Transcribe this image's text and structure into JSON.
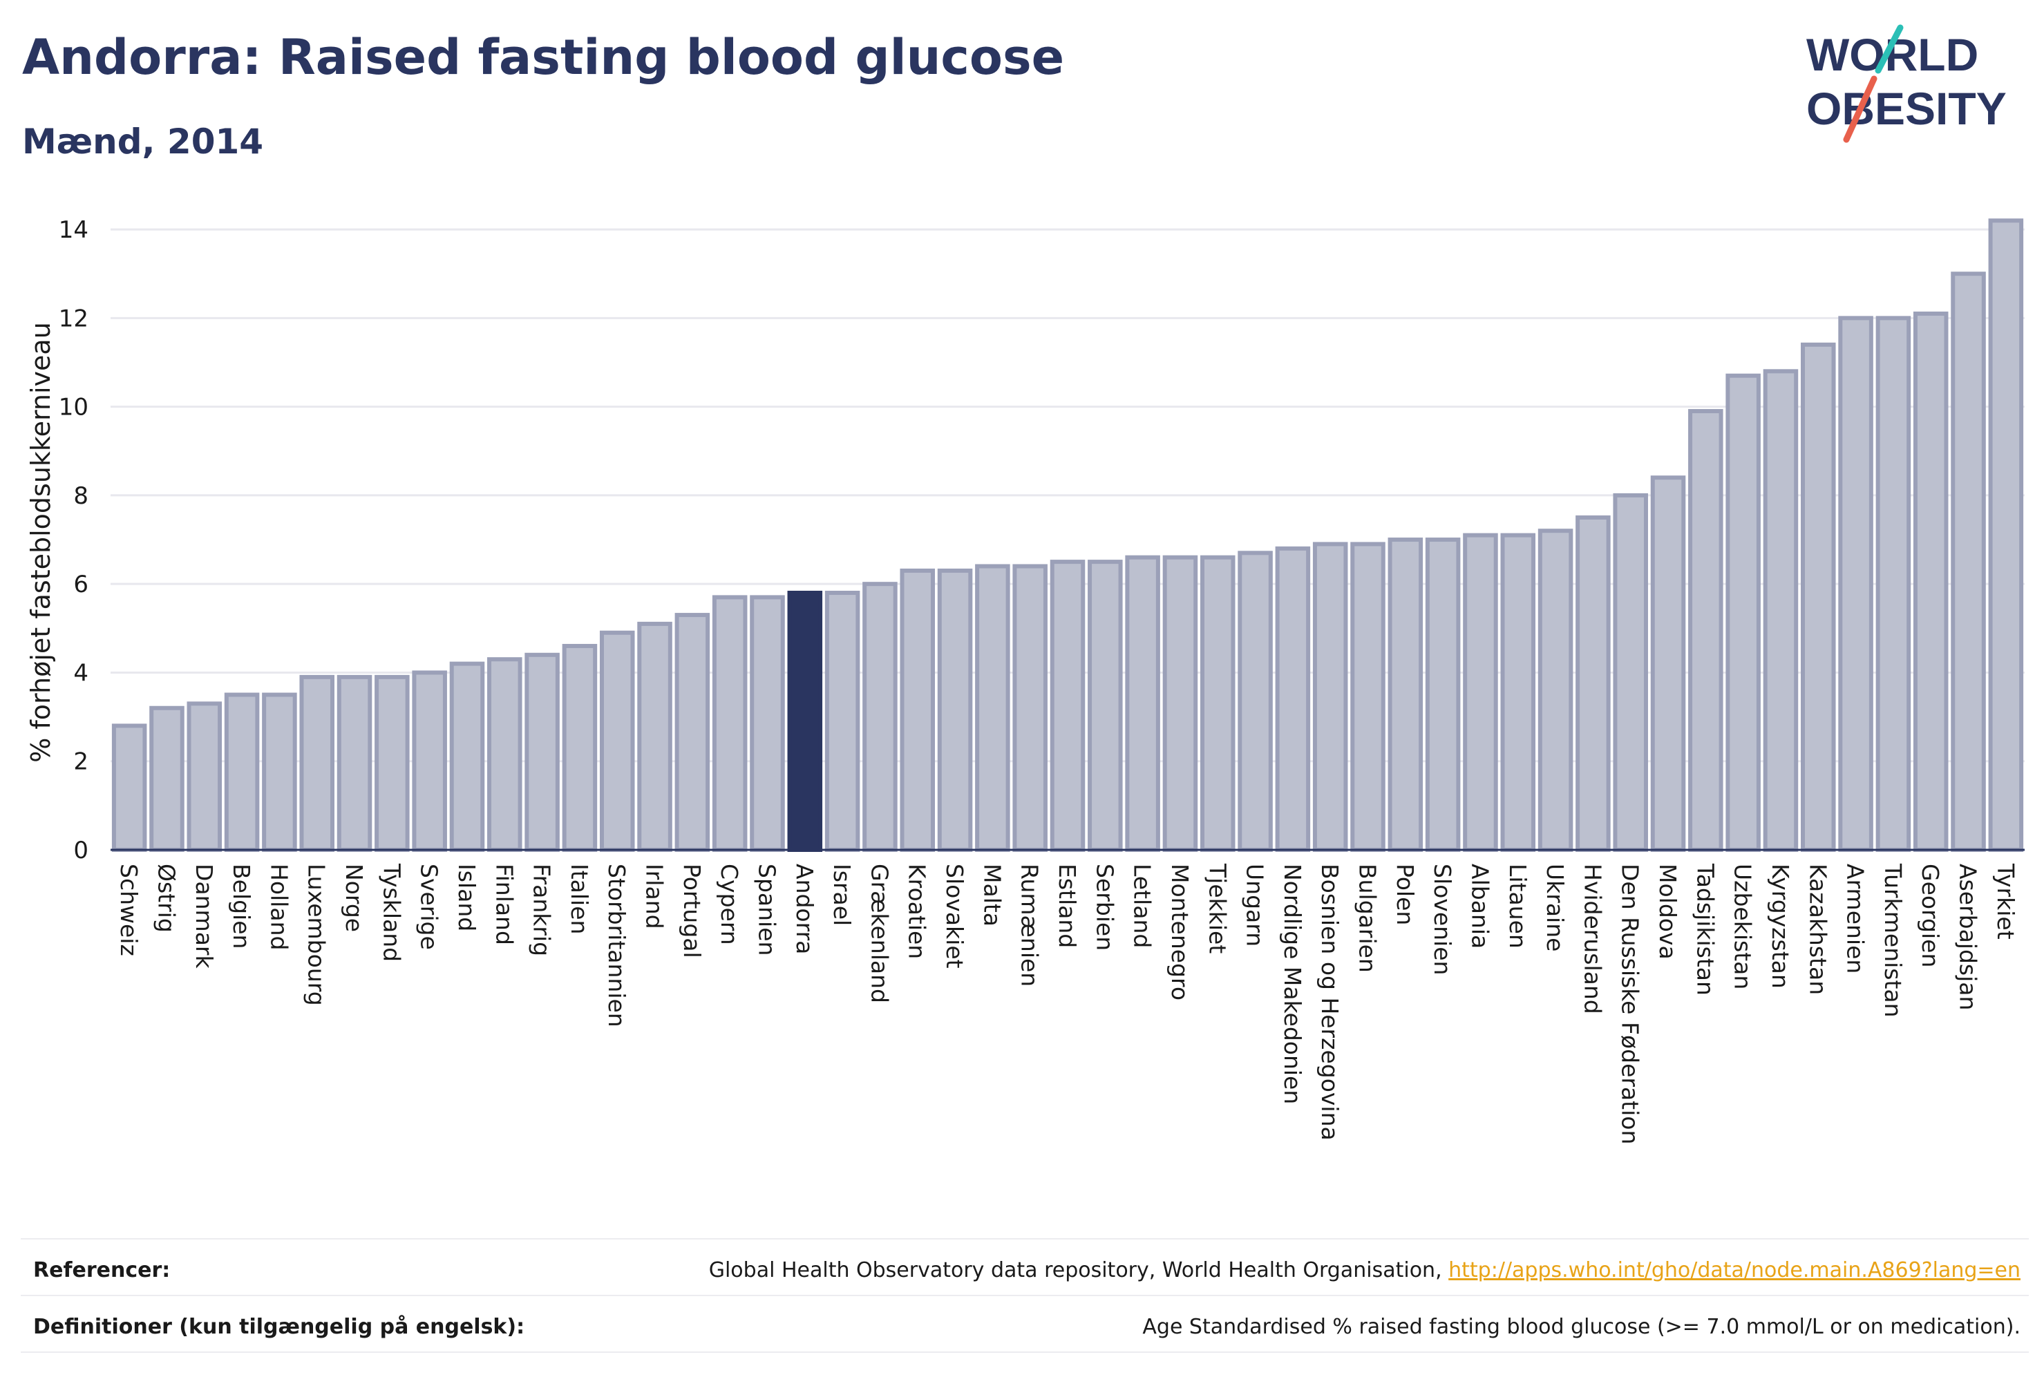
{
  "header": {
    "title": "Andorra: Raised fasting blood glucose",
    "subtitle": "Mænd, 2014"
  },
  "logo": {
    "line1": "WORLD",
    "line2": "OBESITY",
    "colors": {
      "text": "#2a3560",
      "slash_top": "#2bbfb6",
      "slash_bottom": "#e8604c"
    }
  },
  "chart_data": {
    "type": "bar",
    "ylabel": "% forhøjet fasteblodsukkerniveau",
    "xlabel": "",
    "ylim": [
      0,
      14.5
    ],
    "yticks": [
      0,
      2,
      4,
      6,
      8,
      10,
      12,
      14
    ],
    "grid": true,
    "highlight": "Andorra",
    "colors": {
      "bar": "#bcc0cf",
      "bar_border": "#9ba0b8",
      "highlight": "#2a3560"
    },
    "categories": [
      "Schweiz",
      "Østrig",
      "Danmark",
      "Belgien",
      "Holland",
      "Luxembourg",
      "Norge",
      "Tyskland",
      "Sverige",
      "Island",
      "Finland",
      "Frankrig",
      "Italien",
      "Storbritannien",
      "Irland",
      "Portugal",
      "Cypern",
      "Spanien",
      "Andorra",
      "Israel",
      "Grækenland",
      "Kroatien",
      "Slovakiet",
      "Malta",
      "Rumænien",
      "Estland",
      "Serbien",
      "Letland",
      "Montenegro",
      "Tjekkiet",
      "Ungarn",
      "Nordlige Makedonien",
      "Bosnien og Herzegovina",
      "Bulgarien",
      "Polen",
      "Slovenien",
      "Albania",
      "Litauen",
      "Ukraine",
      "Hviderusland",
      "Den Russiske Føderation",
      "Moldova",
      "Tadsjikistan",
      "Uzbekistan",
      "Kyrgyzstan",
      "Kazakhstan",
      "Armenien",
      "Turkmenistan",
      "Georgien",
      "Aserbajdsjan",
      "Tyrkiet"
    ],
    "values": [
      2.8,
      3.2,
      3.3,
      3.5,
      3.5,
      3.9,
      3.9,
      3.9,
      4.0,
      4.2,
      4.3,
      4.4,
      4.6,
      4.9,
      5.1,
      5.3,
      5.7,
      5.7,
      5.8,
      5.8,
      6.0,
      6.3,
      6.3,
      6.4,
      6.4,
      6.5,
      6.5,
      6.6,
      6.6,
      6.6,
      6.7,
      6.8,
      6.9,
      6.9,
      7.0,
      7.0,
      7.1,
      7.1,
      7.2,
      7.5,
      8.0,
      8.4,
      9.9,
      10.7,
      10.8,
      11.4,
      12.0,
      12.0,
      12.1,
      13.0,
      14.2
    ]
  },
  "footer": {
    "references_label": "Referencer:",
    "references_text": "Global Health Observatory data repository, World Health Organisation, ",
    "references_link": "http://apps.who.int/gho/data/node.main.A869?lang=en",
    "definitions_label": "Definitioner (kun tilgængelig på engelsk):",
    "definitions_text": "Age Standardised % raised fasting blood glucose (>= 7.0 mmol/L or on medication)."
  }
}
